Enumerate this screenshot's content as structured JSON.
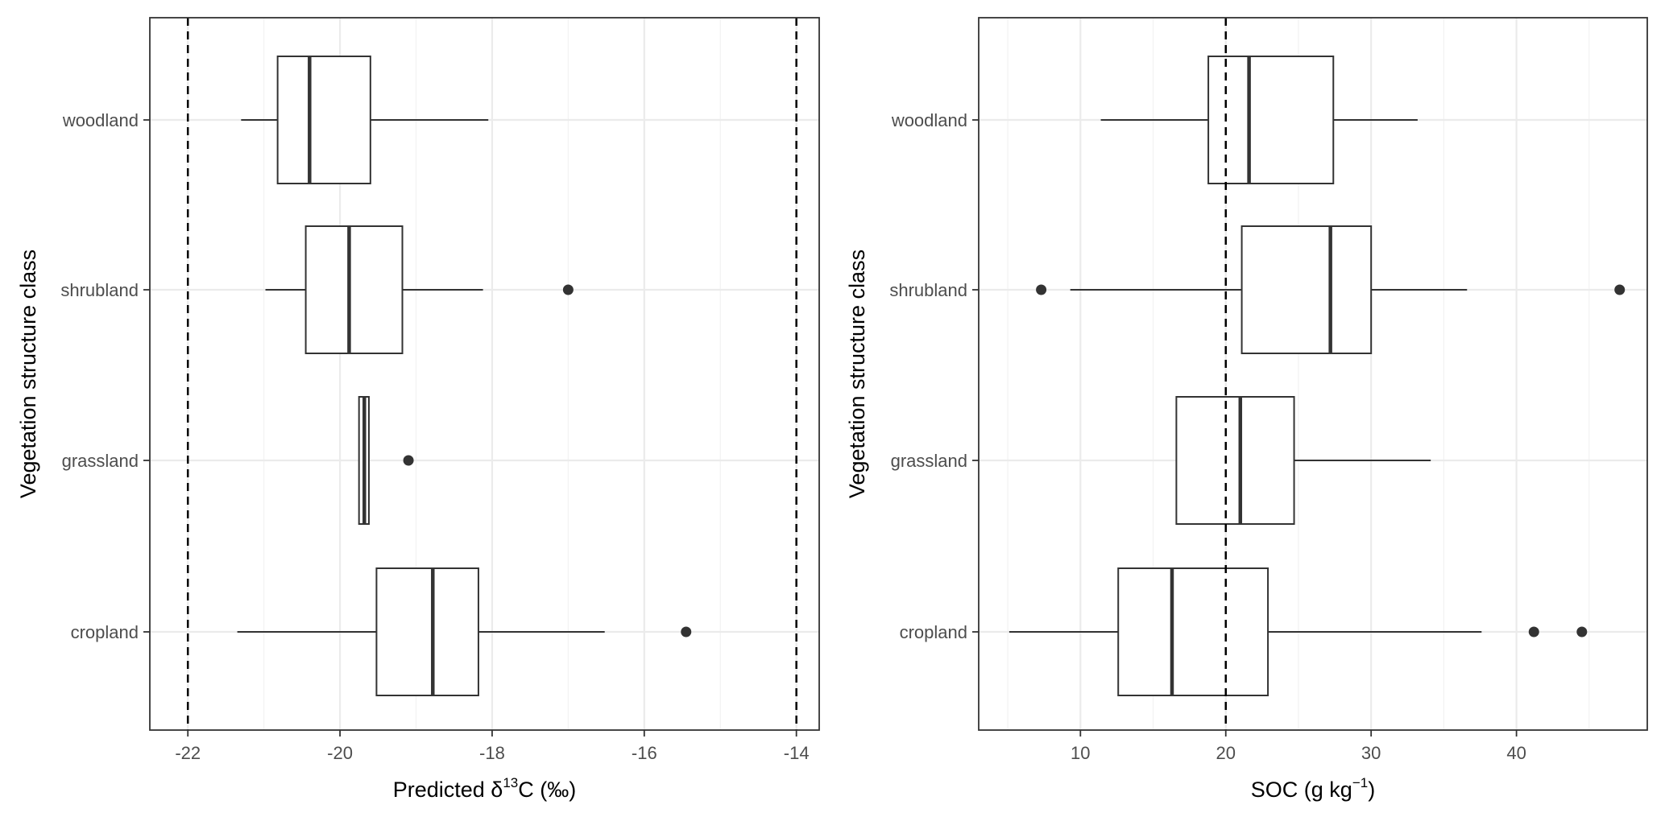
{
  "chart_data": [
    {
      "type": "boxplot",
      "orientation": "horizontal",
      "ylabel": "Vegetation structure class",
      "xlabel": {
        "prefix": "Predicted δ",
        "superscript": "13",
        "suffix": "C (‰)"
      },
      "categories": [
        "woodland",
        "shrubland",
        "grassland",
        "cropland"
      ],
      "xlim": [
        -22.5,
        -13.7
      ],
      "xticks": [
        -22,
        -20,
        -18,
        -16,
        -14
      ],
      "grid": true,
      "reference_lines": [
        -22,
        -14
      ],
      "boxes": [
        {
          "category": "woodland",
          "whisker_low": -21.3,
          "q1": -20.82,
          "median": -20.4,
          "q3": -19.6,
          "whisker_high": -18.05,
          "outliers": []
        },
        {
          "category": "shrubland",
          "whisker_low": -20.98,
          "q1": -20.45,
          "median": -19.88,
          "q3": -19.18,
          "whisker_high": -18.12,
          "outliers": [
            -17.0
          ]
        },
        {
          "category": "grassland",
          "whisker_low": -19.75,
          "q1": -19.75,
          "median": -19.68,
          "q3": -19.62,
          "whisker_high": -19.62,
          "outliers": [
            -19.1
          ]
        },
        {
          "category": "cropland",
          "whisker_low": -21.35,
          "q1": -19.52,
          "median": -18.78,
          "q3": -18.18,
          "whisker_high": -16.52,
          "outliers": [
            -15.45
          ]
        }
      ]
    },
    {
      "type": "boxplot",
      "orientation": "horizontal",
      "ylabel": "Vegetation structure class",
      "xlabel": {
        "prefix": "SOC (g kg",
        "superscript": "−1",
        "suffix": ")"
      },
      "categories": [
        "woodland",
        "shrubland",
        "grassland",
        "cropland"
      ],
      "xlim": [
        3.0,
        49.0
      ],
      "xticks": [
        10,
        20,
        30,
        40
      ],
      "grid": true,
      "reference_lines": [
        20
      ],
      "boxes": [
        {
          "category": "woodland",
          "whisker_low": 11.4,
          "q1": 18.8,
          "median": 21.6,
          "q3": 27.4,
          "whisker_high": 33.2,
          "outliers": []
        },
        {
          "category": "shrubland",
          "whisker_low": 9.3,
          "q1": 21.1,
          "median": 27.2,
          "q3": 30.0,
          "whisker_high": 36.6,
          "outliers": [
            7.3,
            47.1
          ]
        },
        {
          "category": "grassland",
          "whisker_low": 16.6,
          "q1": 16.6,
          "median": 21.0,
          "q3": 24.7,
          "whisker_high": 34.1,
          "outliers": []
        },
        {
          "category": "cropland",
          "whisker_low": 5.1,
          "q1": 12.6,
          "median": 16.3,
          "q3": 22.9,
          "whisker_high": 37.6,
          "outliers": [
            41.2,
            44.5
          ]
        }
      ]
    }
  ]
}
